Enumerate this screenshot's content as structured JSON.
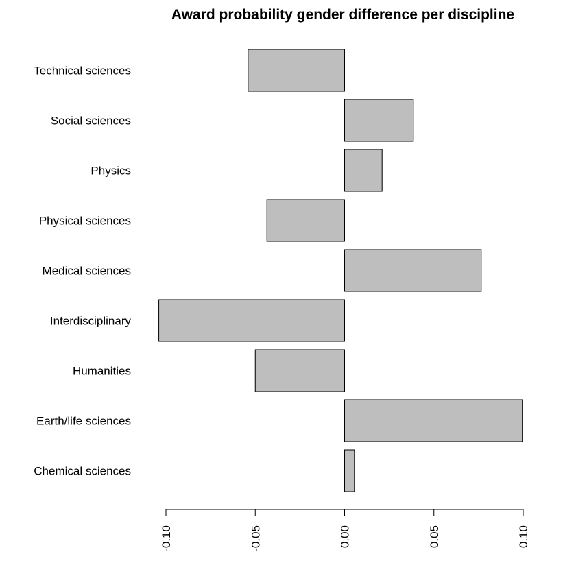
{
  "chart_data": {
    "type": "bar",
    "orientation": "horizontal",
    "title": "Award probability gender difference per discipline",
    "xlabel": "",
    "ylabel": "",
    "xlim": [
      -0.1,
      0.1
    ],
    "x_ticks": [
      "-0.10",
      "-0.05",
      "0.00",
      "0.05",
      "0.10"
    ],
    "x_tick_values": [
      -0.1,
      -0.05,
      0.0,
      0.05,
      0.1
    ],
    "grid": false,
    "bar_color": "#bebebe",
    "categories": [
      "Chemical sciences",
      "Earth/life sciences",
      "Humanities",
      "Interdisciplinary",
      "Medical sciences",
      "Physical sciences",
      "Physics",
      "Social sciences",
      "Technical sciences"
    ],
    "values": [
      0.0055,
      0.0995,
      -0.05,
      -0.104,
      0.0765,
      -0.0435,
      0.021,
      0.0385,
      -0.054
    ]
  }
}
